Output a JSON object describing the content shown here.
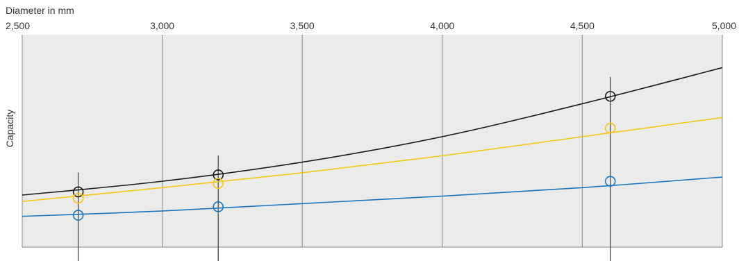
{
  "chart_data": {
    "type": "line",
    "xlabel": "Diameter in mm",
    "ylabel": "Capacity",
    "x_ticks": [
      "2,500",
      "3,000",
      "3,500",
      "4,000",
      "4,500",
      "5,000"
    ],
    "x_tick_values": [
      2500,
      3000,
      3500,
      4000,
      4500,
      5000
    ],
    "xlim": [
      2500,
      5000
    ],
    "ylim": [
      0,
      100
    ],
    "grid": true,
    "background": "#ebebea",
    "grid_color": "#999999",
    "series": [
      {
        "color": "#1a1a1a",
        "x": [
          2500,
          3000,
          3500,
          4000,
          4500,
          5000
        ],
        "values": [
          24.5,
          31,
          40,
          52,
          67.5,
          84.5
        ]
      },
      {
        "color": "#f5c518",
        "x": [
          2500,
          3000,
          3500,
          4000,
          4500,
          5000
        ],
        "values": [
          21.5,
          28,
          35,
          43,
          52,
          61
        ]
      },
      {
        "color": "#1a75bc",
        "x": [
          2500,
          3000,
          3500,
          4000,
          4500,
          5000
        ],
        "values": [
          14.5,
          17,
          20.5,
          24,
          28,
          33
        ]
      }
    ],
    "markers": [
      {
        "x": 2700,
        "values": [
          26,
          23,
          15
        ]
      },
      {
        "x": 3200,
        "values": [
          34,
          30,
          19
        ]
      },
      {
        "x": 4600,
        "values": [
          71,
          56,
          31
        ]
      }
    ]
  }
}
